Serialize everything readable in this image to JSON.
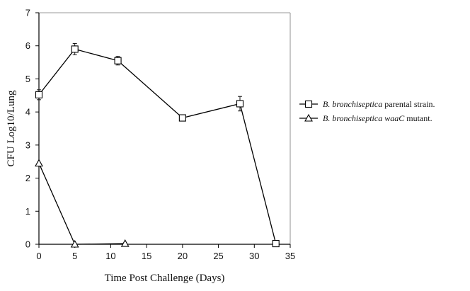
{
  "chart_data": {
    "type": "line",
    "xlabel": "Time Post Challenge (Days)",
    "ylabel": "CFU Log10/Lung",
    "xlim": [
      0,
      35
    ],
    "ylim": [
      0,
      7
    ],
    "x_ticks": [
      "0",
      "5",
      "10",
      "15",
      "20",
      "25",
      "30",
      "35"
    ],
    "y_ticks": [
      "0",
      "1",
      "2",
      "3",
      "4",
      "5",
      "6",
      "7"
    ],
    "x_tick_values": [
      0,
      5,
      10,
      15,
      20,
      25,
      30,
      35
    ],
    "y_tick_values": [
      0,
      1,
      2,
      3,
      4,
      5,
      6,
      7
    ],
    "legend_position": "right",
    "series": [
      {
        "marker": "square",
        "legend": {
          "italic": "B. bronchiseptica",
          "rest": " parental strain."
        },
        "points": [
          {
            "x": 0,
            "y": 4.52,
            "err": 0.15
          },
          {
            "x": 5,
            "y": 5.9,
            "err": 0.17
          },
          {
            "x": 11,
            "y": 5.55,
            "err": 0.13
          },
          {
            "x": 20,
            "y": 3.82,
            "err": 0.0
          },
          {
            "x": 28,
            "y": 4.25,
            "err": 0.22
          },
          {
            "x": 33,
            "y": 0.02,
            "err": 0.0
          }
        ]
      },
      {
        "marker": "triangle",
        "legend": {
          "italic": "B. bronchiseptica ",
          "italic2": "waaC",
          "rest": " mutant."
        },
        "points": [
          {
            "x": 0,
            "y": 2.45,
            "err": 0.0
          },
          {
            "x": 5,
            "y": 0.0,
            "err": 0.0
          },
          {
            "x": 12,
            "y": 0.02,
            "err": 0.0
          }
        ]
      }
    ]
  }
}
